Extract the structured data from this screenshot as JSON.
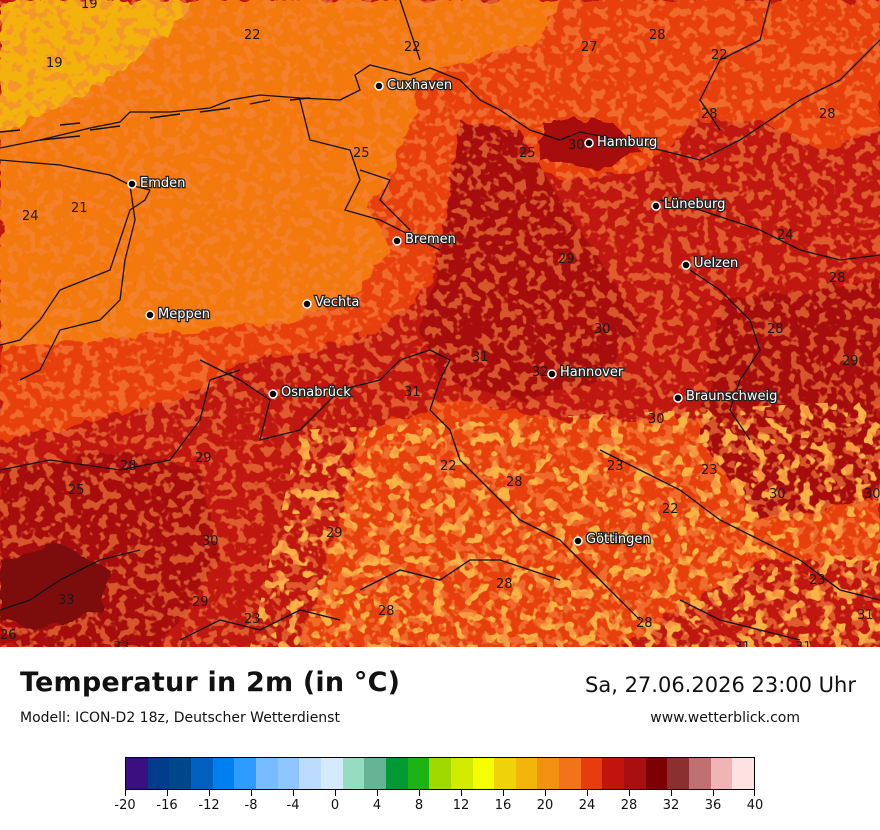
{
  "map": {
    "cities": [
      {
        "name": "Cuxhaven"
      },
      {
        "name": "Hamburg"
      },
      {
        "name": "Emden"
      },
      {
        "name": "Lüneburg"
      },
      {
        "name": "Bremen"
      },
      {
        "name": "Uelzen"
      },
      {
        "name": "Vechta"
      },
      {
        "name": "Meppen"
      },
      {
        "name": "Hannover"
      },
      {
        "name": "Osnabrück"
      },
      {
        "name": "Braunschweig"
      },
      {
        "name": "Göttingen"
      }
    ],
    "temperature_labels": [
      "19",
      "22",
      "22",
      "27",
      "28",
      "22",
      "19",
      "28",
      "28",
      "25",
      "25",
      "30",
      "24",
      "21",
      "29",
      "24",
      "28",
      "30",
      "28",
      "29",
      "31",
      "31",
      "32",
      "30",
      "29",
      "28",
      "22",
      "23",
      "23",
      "25",
      "28",
      "30",
      "30",
      "29",
      "22",
      "30",
      "33",
      "29",
      "23",
      "26",
      "28",
      "28",
      "23",
      "31",
      "33",
      "31",
      "31",
      "28"
    ],
    "colors": {
      "hot": "#c01810",
      "hotter": "#a80e10",
      "mid": "#e8400e",
      "orange": "#f3790f",
      "gold": "#f4b20d",
      "darkest": "#7d0a0a"
    }
  },
  "footer": {
    "title": "Temperatur in 2m (in °C)",
    "model": "Modell: ICON-D2 18z, Deutscher Wetterdienst",
    "datetime": "Sa, 27.06.2026 23:00 Uhr",
    "website": "www.wetterblick.com"
  },
  "legend": {
    "colors": [
      "#3b0f80",
      "#003c8c",
      "#00478a",
      "#005fbf",
      "#0080f0",
      "#2e9cff",
      "#78bcff",
      "#8fc6ff",
      "#bcdcff",
      "#d6eaff",
      "#95ddc0",
      "#66b396",
      "#009933",
      "#1eb314",
      "#a0d900",
      "#d2eb00",
      "#f5ff00",
      "#f0d20a",
      "#f2b50a",
      "#f39111",
      "#f2731a",
      "#e63c0e",
      "#c1140d",
      "#a90f10",
      "#7d0005",
      "#8a3030",
      "#c07070",
      "#f0b4b4",
      "#ffe1e1"
    ],
    "ticks": [
      "-20",
      "-16",
      "-12",
      "-8",
      "-4",
      "0",
      "4",
      "8",
      "12",
      "16",
      "20",
      "24",
      "28",
      "32",
      "36",
      "40"
    ]
  }
}
